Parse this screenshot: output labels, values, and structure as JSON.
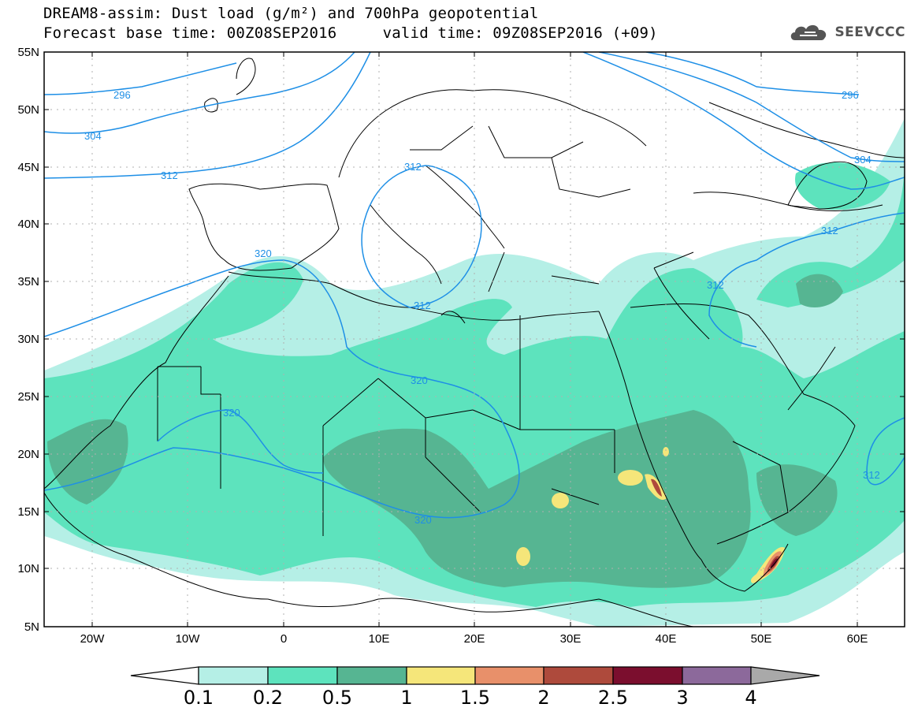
{
  "title_line1": "DREAM8-assim: Dust load (g/m²) and 700hPa geopotential",
  "title_line2": "Forecast base time: 00Z08SEP2016     valid time: 09Z08SEP2016 (+09)",
  "logo_text": "SEEVCCC",
  "logo_icon": "cloud-icon",
  "map": {
    "lon_range": [
      -25,
      65
    ],
    "lat_range": [
      5,
      55
    ],
    "lat_labels": [
      "55N",
      "50N",
      "45N",
      "40N",
      "35N",
      "30N",
      "25N",
      "20N",
      "15N",
      "10N",
      "5N"
    ],
    "lon_labels": [
      "20W",
      "10W",
      "0",
      "10E",
      "20E",
      "30E",
      "40E",
      "50E",
      "60E"
    ],
    "contour_labels": [
      "296",
      "304",
      "312",
      "312",
      "320",
      "312",
      "320",
      "320",
      "320",
      "296",
      "304",
      "312",
      "312",
      "312"
    ],
    "contour_color": "#1e8fe6"
  },
  "colorbar": {
    "labels": [
      "0.1",
      "0.2",
      "0.5",
      "1",
      "1.5",
      "2",
      "2.5",
      "3",
      "4"
    ],
    "colors": [
      "#ffffff",
      "#b5efe6",
      "#5de3bd",
      "#56b592",
      "#f5e67a",
      "#e8906a",
      "#ae4a3c",
      "#7b0e2e",
      "#8c699b",
      "#a9a9a9"
    ]
  }
}
